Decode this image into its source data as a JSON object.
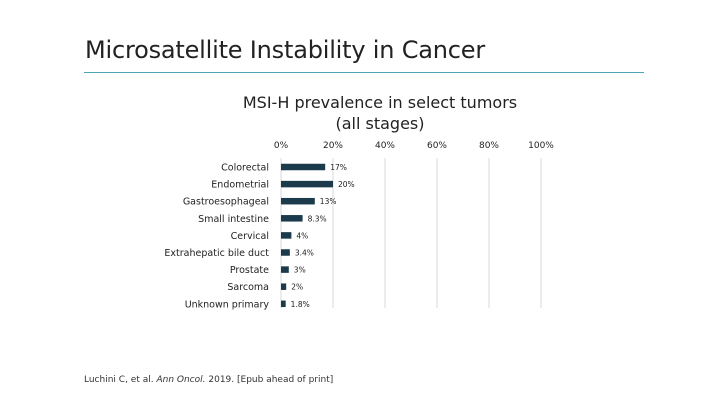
{
  "slide": {
    "title": "Microsatellite Instability in Cancer"
  },
  "citation": {
    "authors": "Luchini C, et al.",
    "journal": "Ann Oncol.",
    "rest": "2019. [Epub ahead of print]"
  },
  "colors": {
    "bar": "#1b3a4b",
    "accent_rule": "#4ea3b5",
    "grid": "#d9d9d9"
  },
  "chart_data": {
    "type": "bar",
    "orientation": "horizontal",
    "title": "MSI-H prevalence in select tumors",
    "subtitle": "(all stages)",
    "xlabel": "",
    "ylabel": "",
    "xlim": [
      0,
      100
    ],
    "xticks": [
      0,
      20,
      40,
      60,
      80,
      100
    ],
    "xtick_labels": [
      "0%",
      "20%",
      "40%",
      "60%",
      "80%",
      "100%"
    ],
    "axis_position": "top",
    "grid": true,
    "categories": [
      "Colorectal",
      "Endometrial",
      "Gastroesophageal",
      "Small intestine",
      "Cervical",
      "Extrahepatic bile duct",
      "Prostate",
      "Sarcoma",
      "Unknown primary"
    ],
    "values": [
      17,
      20,
      13,
      8.3,
      4,
      3.4,
      3,
      2,
      1.8
    ],
    "value_labels": [
      "17%",
      "20%",
      "13%",
      "8.3%",
      "4%",
      "3.4%",
      "3%",
      "2%",
      "1.8%"
    ]
  }
}
